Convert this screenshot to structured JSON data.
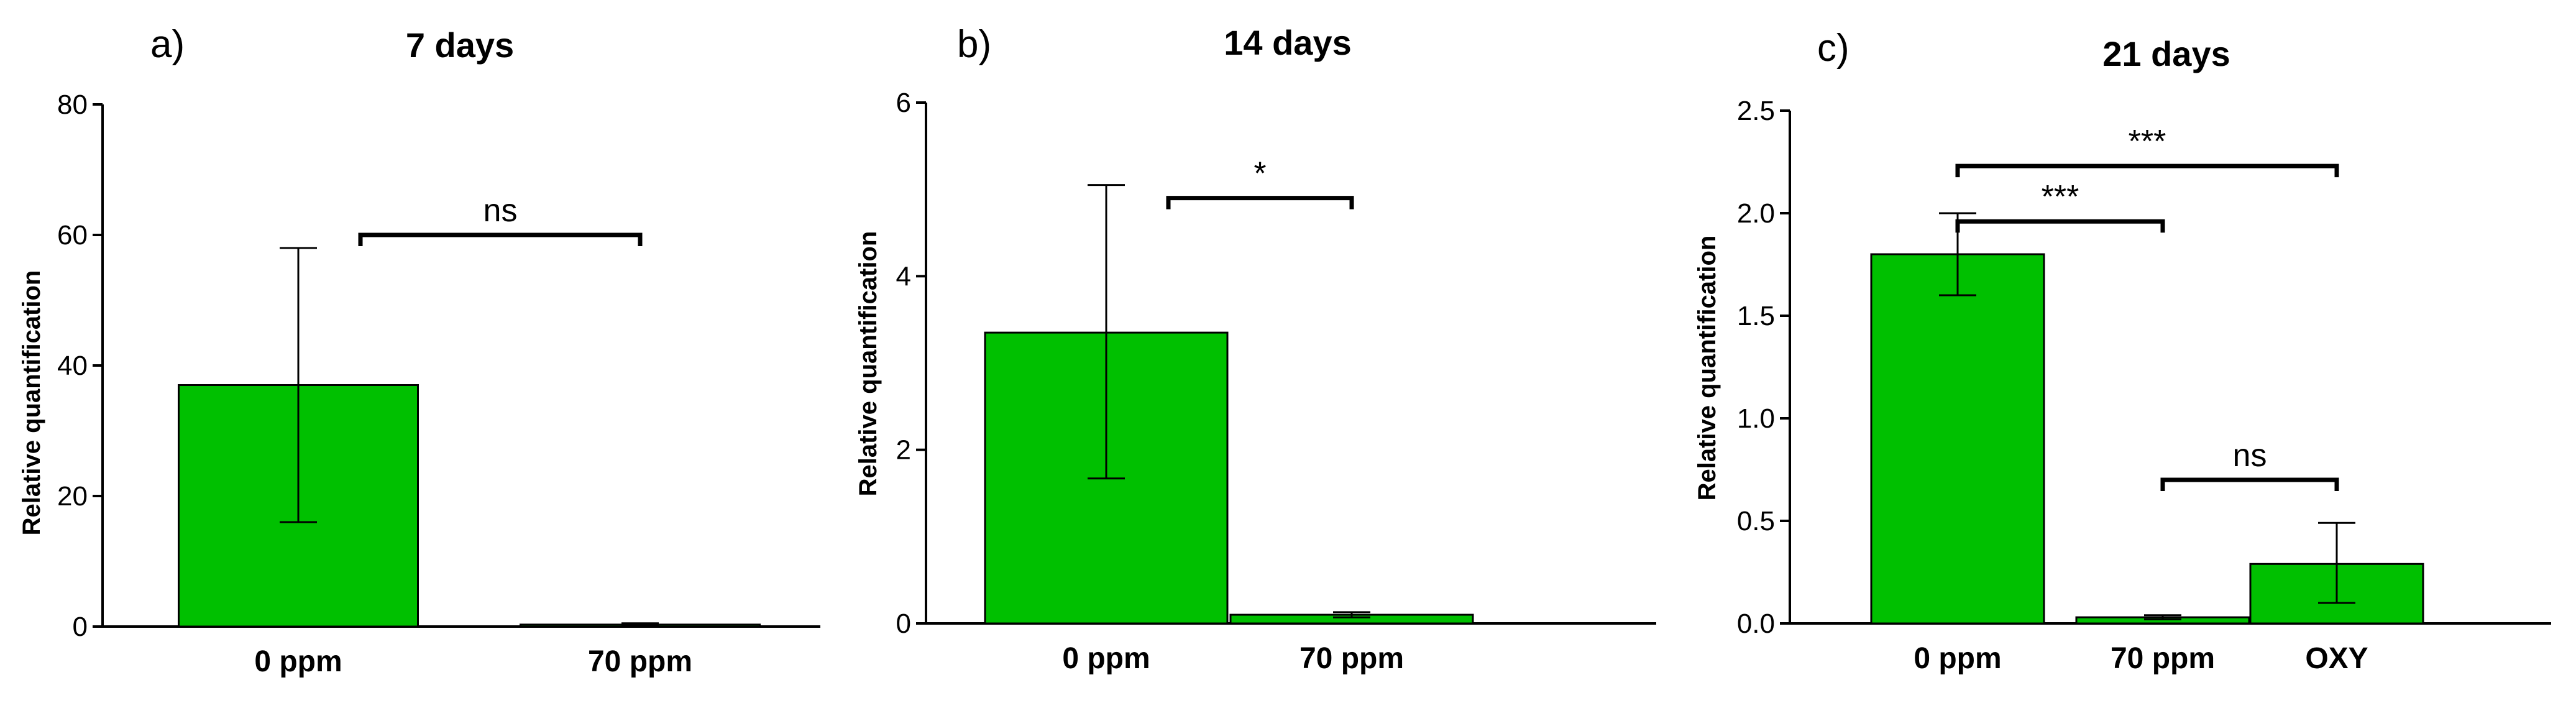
{
  "figure": {
    "panels": [
      {
        "letter": "a)",
        "title": "7 days",
        "ylabel": "Relative quantification"
      },
      {
        "letter": "b)",
        "title": "14 days",
        "ylabel": "Relative quantification"
      },
      {
        "letter": "c)",
        "title": "21 days",
        "ylabel": "Relative quantification"
      }
    ]
  },
  "colors": {
    "bar_fill": "#00C000",
    "bar_stroke": "#000000",
    "axis": "#000000"
  },
  "chart_data": [
    {
      "type": "bar",
      "title": "7 days",
      "panel_label": "a)",
      "ylabel": "Relative quantification",
      "xlabel": "",
      "categories": [
        "0 ppm",
        "70 ppm"
      ],
      "values": [
        37,
        0.3
      ],
      "error_low": [
        16,
        0.1
      ],
      "error_high": [
        58,
        0.5
      ],
      "ylim": [
        0,
        80
      ],
      "yticks": [
        0,
        20,
        40,
        60,
        80
      ],
      "ytick_labels": [
        "0",
        "20",
        "40",
        "60",
        "80"
      ],
      "significance": [
        {
          "from": 0,
          "to": 1,
          "label": "ns",
          "y": 60
        }
      ],
      "grid": false,
      "legend": "none"
    },
    {
      "type": "bar",
      "title": "14 days",
      "panel_label": "b)",
      "ylabel": "Relative quantification",
      "xlabel": "",
      "categories": [
        "0 ppm",
        "70 ppm"
      ],
      "values": [
        3.35,
        0.1
      ],
      "error_low": [
        1.67,
        0.07
      ],
      "error_high": [
        5.05,
        0.13
      ],
      "ylim": [
        0,
        6
      ],
      "yticks": [
        0,
        2,
        4,
        6
      ],
      "ytick_labels": [
        "0",
        "2",
        "4",
        "6"
      ],
      "significance": [
        {
          "from": 0,
          "to": 1,
          "label": "*",
          "y": 4.9
        }
      ],
      "grid": false,
      "legend": "none"
    },
    {
      "type": "bar",
      "title": "21 days",
      "panel_label": "c)",
      "ylabel": "Relative quantification",
      "xlabel": "",
      "categories": [
        "0 ppm",
        "70 ppm",
        "OXY"
      ],
      "values": [
        1.8,
        0.03,
        0.29
      ],
      "error_low": [
        1.6,
        0.02,
        0.1
      ],
      "error_high": [
        2.0,
        0.04,
        0.49
      ],
      "ylim": [
        0,
        2.5
      ],
      "yticks": [
        0,
        0.5,
        1.0,
        1.5,
        2.0,
        2.5
      ],
      "ytick_labels": [
        "0.0",
        "0.5",
        "1.0",
        "1.5",
        "2.0",
        "2.5"
      ],
      "significance": [
        {
          "from": 0,
          "to": 1,
          "label": "***",
          "y": 1.96
        },
        {
          "from": 0,
          "to": 2,
          "label": "***",
          "y": 2.23
        },
        {
          "from": 1,
          "to": 2,
          "label": "ns",
          "y": 0.7
        }
      ],
      "grid": false,
      "legend": "none"
    }
  ]
}
